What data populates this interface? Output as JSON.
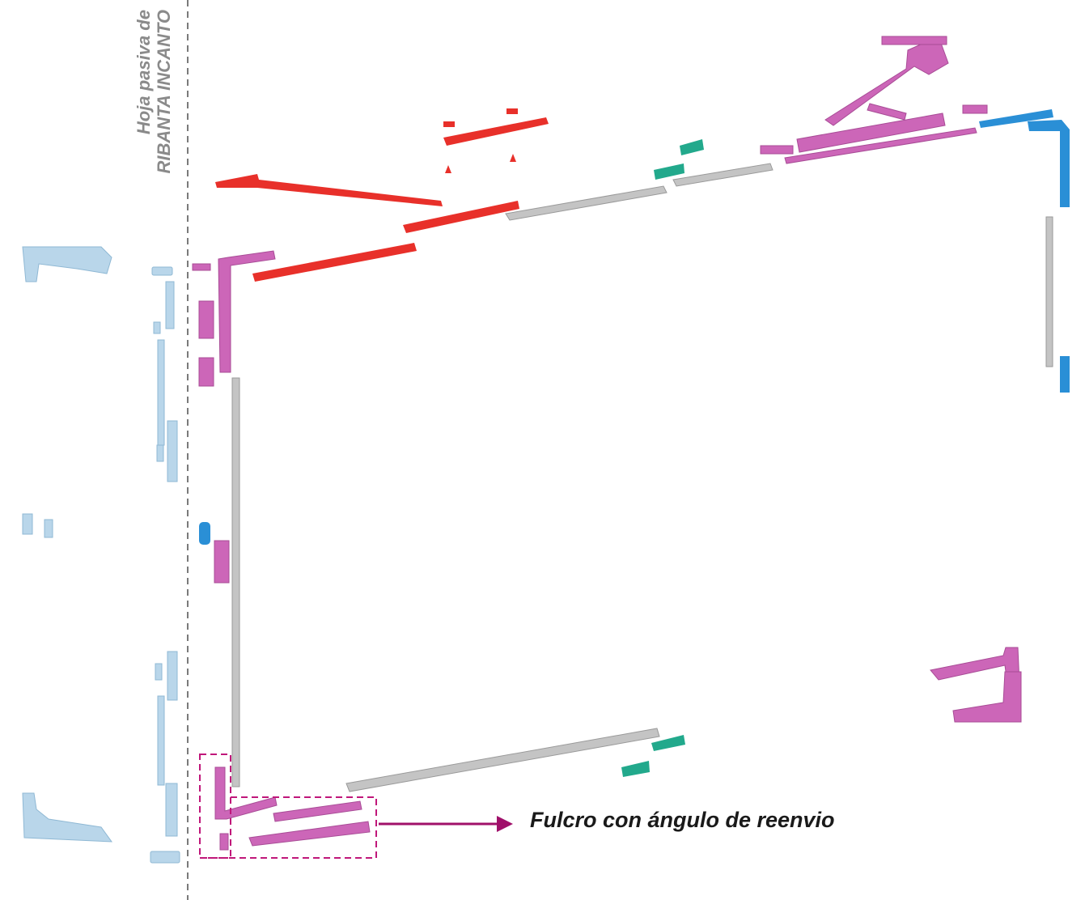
{
  "side_label": {
    "line1": "Hoja pasiva de",
    "line2": "RIBANTA INCANTO"
  },
  "callout_label": "Fulcro con ángulo de reenvio",
  "colors": {
    "light_blue_parts": "#b9d6ea",
    "blue_parts": "#2a8fd6",
    "pink_parts": "#cc66b8",
    "red_parts": "#e8302a",
    "green_parts": "#22a98c",
    "grey_rods": "#c4c4c4",
    "dashed_guide": "#7a7a7a",
    "callout_box": "#c0177a",
    "callout_arrow": "#a0106a"
  }
}
